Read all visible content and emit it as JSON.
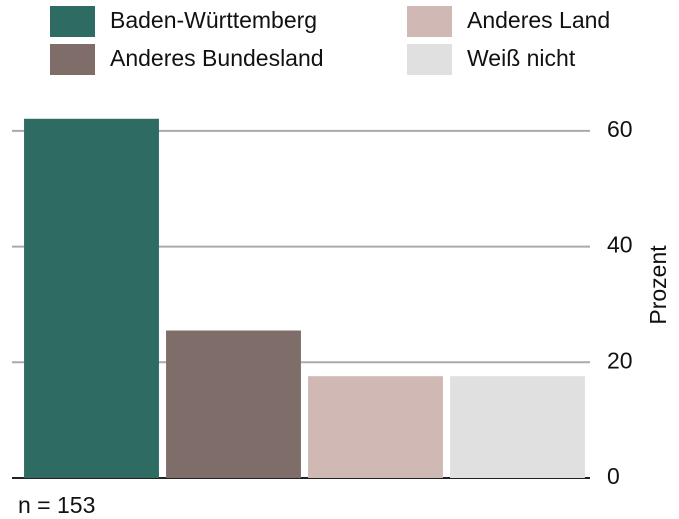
{
  "chart_data": {
    "type": "bar",
    "categories": [
      "Baden-Württemberg",
      "Anderes Bundesland",
      "Anderes Land",
      "Weiß nicht"
    ],
    "values": [
      62.1,
      25.5,
      17.6,
      17.6
    ],
    "colors": [
      "#2e6b62",
      "#7f6d69",
      "#d0b9b4",
      "#e0e0e0"
    ],
    "ylim": [
      0,
      65
    ],
    "yticks": [
      0,
      20,
      40,
      60
    ],
    "grid": true,
    "y_label": "Prozent",
    "caption": "n = 153"
  }
}
